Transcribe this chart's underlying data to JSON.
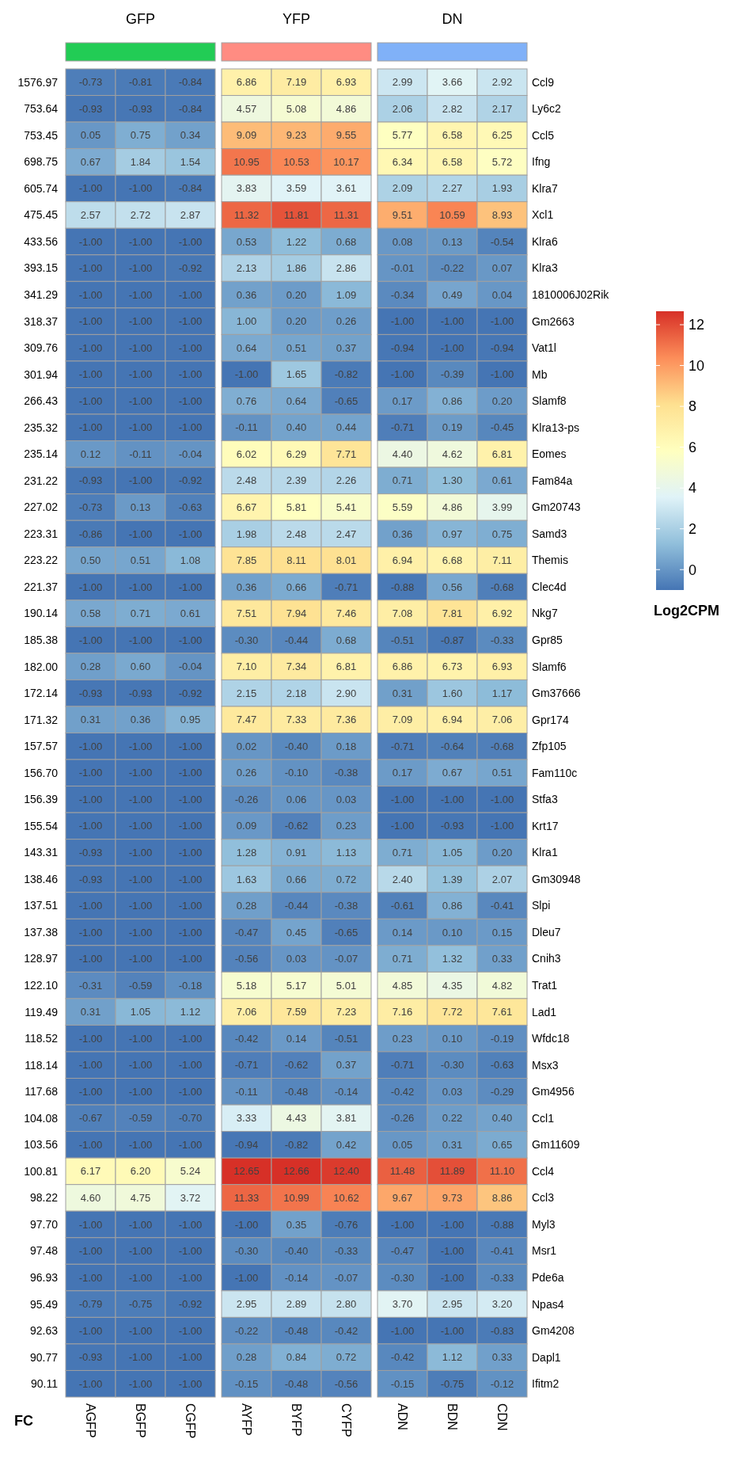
{
  "chart_data": [
    {
      "type": "heatmap",
      "title": "GFP",
      "ylabel": "FC",
      "categories": [
        "AGFP",
        "BGFP",
        "CGFP"
      ],
      "y_categories": [
        "1576.97",
        "753.64",
        "753.45",
        "698.75",
        "605.74",
        "475.45",
        "433.56",
        "393.15",
        "341.29",
        "318.37",
        "309.76",
        "301.94",
        "266.43",
        "235.32",
        "235.14",
        "231.22",
        "227.02",
        "223.31",
        "223.22",
        "221.37",
        "190.14",
        "185.38",
        "182.00",
        "172.14",
        "171.32",
        "157.57",
        "156.70",
        "156.39",
        "155.54",
        "143.31",
        "138.46",
        "137.51",
        "137.38",
        "128.97",
        "122.10",
        "119.49",
        "118.52",
        "118.14",
        "117.68",
        "104.08",
        "103.56",
        "100.81",
        "98.22",
        "97.70",
        "97.48",
        "96.93",
        "95.49",
        "92.63",
        "90.77",
        "90.11"
      ],
      "cells": [
        [
          -0.73,
          -0.81,
          -0.84
        ],
        [
          -0.93,
          -0.93,
          -0.84
        ],
        [
          0.05,
          0.75,
          0.34
        ],
        [
          0.67,
          1.84,
          1.54
        ],
        [
          -1,
          -1,
          -0.84
        ],
        [
          2.57,
          2.72,
          2.87
        ],
        [
          -1,
          -1,
          -1
        ],
        [
          -1,
          -1,
          -0.92
        ],
        [
          -1,
          -1,
          -1
        ],
        [
          -1,
          -1,
          -1
        ],
        [
          -1,
          -1,
          -1
        ],
        [
          -1,
          -1,
          -1
        ],
        [
          -1,
          -1,
          -1
        ],
        [
          -1,
          -1,
          -1
        ],
        [
          0.12,
          -0.11,
          -0.04
        ],
        [
          -0.93,
          -1,
          -0.92
        ],
        [
          -0.73,
          0.13,
          -0.63
        ],
        [
          -0.86,
          -1,
          -1
        ],
        [
          0.5,
          0.51,
          1.08
        ],
        [
          -1,
          -1,
          -1
        ],
        [
          0.58,
          0.71,
          0.61
        ],
        [
          -1,
          -1,
          -1
        ],
        [
          0.28,
          0.6,
          -0.04
        ],
        [
          -0.93,
          -0.93,
          -0.92
        ],
        [
          0.31,
          0.36,
          0.95
        ],
        [
          -1,
          -1,
          -1
        ],
        [
          -1,
          -1,
          -1
        ],
        [
          -1,
          -1,
          -1
        ],
        [
          -1,
          -1,
          -1
        ],
        [
          -0.93,
          -1,
          -1
        ],
        [
          -0.93,
          -1,
          -1
        ],
        [
          -1,
          -1,
          -1
        ],
        [
          -1,
          -1,
          -1
        ],
        [
          -1,
          -1,
          -1
        ],
        [
          -0.31,
          -0.59,
          -0.18
        ],
        [
          0.31,
          1.05,
          1.12
        ],
        [
          -1,
          -1,
          -1
        ],
        [
          -1,
          -1,
          -1
        ],
        [
          -1,
          -1,
          -1
        ],
        [
          -0.67,
          -0.59,
          -0.7
        ],
        [
          -1,
          -1,
          -1
        ],
        [
          6.17,
          6.2,
          5.24
        ],
        [
          4.6,
          4.75,
          3.72
        ],
        [
          -1,
          -1,
          -1
        ],
        [
          -1,
          -1,
          -1
        ],
        [
          -1,
          -1,
          -1
        ],
        [
          -0.79,
          -0.75,
          -0.92
        ],
        [
          -1,
          -1,
          -1
        ],
        [
          -0.93,
          -1,
          -1
        ],
        [
          -1,
          -1,
          -1
        ]
      ],
      "cell_labels": [
        [
          "-0.73",
          "-0.81",
          "-0.84"
        ],
        [
          "-0.93",
          "-0.93",
          "-0.84"
        ],
        [
          "0.05",
          "0.75",
          "0.34"
        ],
        [
          "0.67",
          "1.84",
          "1.54"
        ],
        [
          "-1.00",
          "-1.00",
          "-0.84"
        ],
        [
          "2.57",
          "2.72",
          "2.87"
        ],
        [
          "-1.00",
          "-1.00",
          "-1.00"
        ],
        [
          "-1.00",
          "-1.00",
          "-0.92"
        ],
        [
          "-1.00",
          "-1.00",
          "-1.00"
        ],
        [
          "-1.00",
          "-1.00",
          "-1.00"
        ],
        [
          "-1.00",
          "-1.00",
          "-1.00"
        ],
        [
          "-1.00",
          "-1.00",
          "-1.00"
        ],
        [
          "-1.00",
          "-1.00",
          "-1.00"
        ],
        [
          "-1.00",
          "-1.00",
          "-1.00"
        ],
        [
          "0.12",
          "-0.11",
          "-0.04"
        ],
        [
          "-0.93",
          "-1.00",
          "-0.92"
        ],
        [
          "-0.73",
          "0.13",
          "-0.63"
        ],
        [
          "-0.86",
          "-1.00",
          "-1.00"
        ],
        [
          "0.50",
          "0.51",
          "1.08"
        ],
        [
          "-1.00",
          "-1.00",
          "-1.00"
        ],
        [
          "0.58",
          "0.71",
          "0.61"
        ],
        [
          "-1.00",
          "-1.00",
          "-1.00"
        ],
        [
          "0.28",
          "0.60",
          "-0.04"
        ],
        [
          "-0.93",
          "-0.93",
          "-0.92"
        ],
        [
          "0.31",
          "0.36",
          "0.95"
        ],
        [
          "-1.00",
          "-1.00",
          "-1.00"
        ],
        [
          "-1.00",
          "-1.00",
          "-1.00"
        ],
        [
          "-1.00",
          "-1.00",
          "-1.00"
        ],
        [
          "-1.00",
          "-1.00",
          "-1.00"
        ],
        [
          "-0.93",
          "-1.00",
          "-1.00"
        ],
        [
          "-0.93",
          "-1.00",
          "-1.00"
        ],
        [
          "-1.00",
          "-1.00",
          "-1.00"
        ],
        [
          "-1.00",
          "-1.00",
          "-1.00"
        ],
        [
          "-1.00",
          "-1.00",
          "-1.00"
        ],
        [
          "-0.31",
          "-0.59",
          "-0.18"
        ],
        [
          "0.31",
          "1.05",
          "1.12"
        ],
        [
          "-1.00",
          "-1.00",
          "-1.00"
        ],
        [
          "-1.00",
          "-1.00",
          "-1.00"
        ],
        [
          "-1.00",
          "-1.00",
          "-1.00"
        ],
        [
          "-0.67",
          "-0.59",
          "-0.70"
        ],
        [
          "-1.00",
          "-1.00",
          "-1.00"
        ],
        [
          "6.17",
          "6.20",
          "5.24"
        ],
        [
          "4.60",
          "4.75",
          "3.72"
        ],
        [
          "-1.00",
          "-1.00",
          "-1.00"
        ],
        [
          "-1.00",
          "-1.00",
          "-1.00"
        ],
        [
          "-1.00",
          "-1.00",
          "-1.00"
        ],
        [
          "-0.79",
          "-0.75",
          "-0.92"
        ],
        [
          "-1.00",
          "-1.00",
          "-1.00"
        ],
        [
          "-0.93",
          "-1.00",
          "-1.00"
        ],
        [
          "-1.00",
          "-1.00",
          "-1.00"
        ]
      ]
    },
    {
      "type": "heatmap",
      "title": "YFP",
      "categories": [
        "AYFP",
        "BYFP",
        "CYFP"
      ],
      "y_categories": [
        null,
        null,
        null,
        null,
        null,
        null,
        null,
        null,
        null,
        null,
        null,
        null,
        null,
        null,
        null,
        null,
        null,
        null,
        null,
        null,
        null,
        null,
        null,
        null,
        null,
        null,
        null,
        null,
        null,
        null,
        null,
        null,
        null,
        null,
        null,
        null,
        null,
        null,
        null,
        null,
        null,
        null,
        null,
        null,
        null,
        null,
        null,
        null,
        null,
        null
      ],
      "cells": [
        [
          6.86,
          7.19,
          6.93
        ],
        [
          4.57,
          5.08,
          4.86
        ],
        [
          9.09,
          9.23,
          9.55
        ],
        [
          10.95,
          10.53,
          10.17
        ],
        [
          3.83,
          3.59,
          3.61
        ],
        [
          11.32,
          11.81,
          11.31
        ],
        [
          0.53,
          1.22,
          0.68
        ],
        [
          2.13,
          1.86,
          2.86
        ],
        [
          0.36,
          0.2,
          1.09
        ],
        [
          1,
          0.2,
          0.26
        ],
        [
          0.64,
          0.51,
          0.37
        ],
        [
          -1,
          1.65,
          -0.82
        ],
        [
          0.76,
          0.64,
          -0.65
        ],
        [
          -0.11,
          0.4,
          0.44
        ],
        [
          6.02,
          6.29,
          7.71
        ],
        [
          2.48,
          2.39,
          2.26
        ],
        [
          6.67,
          5.81,
          5.41
        ],
        [
          1.98,
          2.48,
          2.47
        ],
        [
          7.85,
          8.11,
          8.01
        ],
        [
          0.36,
          0.66,
          -0.71
        ],
        [
          7.51,
          7.94,
          7.46
        ],
        [
          -0.3,
          -0.44,
          0.68
        ],
        [
          7.1,
          7.34,
          6.81
        ],
        [
          2.15,
          2.18,
          2.9
        ],
        [
          7.47,
          7.33,
          7.36
        ],
        [
          0.02,
          -0.4,
          0.18
        ],
        [
          0.26,
          -0.1,
          -0.38
        ],
        [
          -0.26,
          0.06,
          0.03
        ],
        [
          0.09,
          -0.62,
          0.23
        ],
        [
          1.28,
          0.91,
          1.13
        ],
        [
          1.63,
          0.66,
          0.72
        ],
        [
          0.28,
          -0.44,
          -0.38
        ],
        [
          -0.47,
          0.45,
          -0.65
        ],
        [
          -0.56,
          0.03,
          -0.07
        ],
        [
          5.18,
          5.17,
          5.01
        ],
        [
          7.06,
          7.59,
          7.23
        ],
        [
          -0.42,
          0.14,
          -0.51
        ],
        [
          -0.71,
          -0.62,
          0.37
        ],
        [
          -0.11,
          -0.48,
          -0.14
        ],
        [
          3.33,
          4.43,
          3.81
        ],
        [
          -0.94,
          -0.82,
          0.42
        ],
        [
          12.65,
          12.66,
          12.4
        ],
        [
          11.33,
          10.99,
          10.62
        ],
        [
          -1,
          0.35,
          -0.76
        ],
        [
          -0.3,
          -0.4,
          -0.33
        ],
        [
          -1,
          -0.14,
          -0.07
        ],
        [
          2.95,
          2.89,
          2.8
        ],
        [
          -0.22,
          -0.48,
          -0.42
        ],
        [
          0.28,
          0.84,
          0.72
        ],
        [
          -0.15,
          -0.48,
          -0.56
        ]
      ],
      "cell_labels": [
        [
          "6.86",
          "7.19",
          "6.93"
        ],
        [
          "4.57",
          "5.08",
          "4.86"
        ],
        [
          "9.09",
          "9.23",
          "9.55"
        ],
        [
          "10.95",
          "10.53",
          "10.17"
        ],
        [
          "3.83",
          "3.59",
          "3.61"
        ],
        [
          "11.32",
          "11.81",
          "11.31"
        ],
        [
          "0.53",
          "1.22",
          "0.68"
        ],
        [
          "2.13",
          "1.86",
          "2.86"
        ],
        [
          "0.36",
          "0.20",
          "1.09"
        ],
        [
          "1.00",
          "0.20",
          "0.26"
        ],
        [
          "0.64",
          "0.51",
          "0.37"
        ],
        [
          "-1.00",
          "1.65",
          "-0.82"
        ],
        [
          "0.76",
          "0.64",
          "-0.65"
        ],
        [
          "-0.11",
          "0.40",
          "0.44"
        ],
        [
          "6.02",
          "6.29",
          "7.71"
        ],
        [
          "2.48",
          "2.39",
          "2.26"
        ],
        [
          "6.67",
          "5.81",
          "5.41"
        ],
        [
          "1.98",
          "2.48",
          "2.47"
        ],
        [
          "7.85",
          "8.11",
          "8.01"
        ],
        [
          "0.36",
          "0.66",
          "-0.71"
        ],
        [
          "7.51",
          "7.94",
          "7.46"
        ],
        [
          "-0.30",
          "-0.44",
          "0.68"
        ],
        [
          "7.10",
          "7.34",
          "6.81"
        ],
        [
          "2.15",
          "2.18",
          "2.90"
        ],
        [
          "7.47",
          "7.33",
          "7.36"
        ],
        [
          "0.02",
          "-0.40",
          "0.18"
        ],
        [
          "0.26",
          "-0.10",
          "-0.38"
        ],
        [
          "-0.26",
          "0.06",
          "0.03"
        ],
        [
          "0.09",
          "-0.62",
          "0.23"
        ],
        [
          "1.28",
          "0.91",
          "1.13"
        ],
        [
          "1.63",
          "0.66",
          "0.72"
        ],
        [
          "0.28",
          "-0.44",
          "-0.38"
        ],
        [
          "-0.47",
          "0.45",
          "-0.65"
        ],
        [
          "-0.56",
          "0.03",
          "-0.07"
        ],
        [
          "5.18",
          "5.17",
          "5.01"
        ],
        [
          "7.06",
          "7.59",
          "7.23"
        ],
        [
          "-0.42",
          "0.14",
          "-0.51"
        ],
        [
          "-0.71",
          "-0.62",
          "0.37"
        ],
        [
          "-0.11",
          "-0.48",
          "-0.14"
        ],
        [
          "3.33",
          "4.43",
          "3.81"
        ],
        [
          "-0.94",
          "-0.82",
          "0.42"
        ],
        [
          "12.65",
          "12.66",
          "12.40"
        ],
        [
          "11.33",
          "10.99",
          "10.62"
        ],
        [
          "-1.00",
          "0.35",
          "-0.76"
        ],
        [
          "-0.30",
          "-0.40",
          "-0.33"
        ],
        [
          "-1.00",
          "-0.14",
          "-0.07"
        ],
        [
          "2.95",
          "2.89",
          "2.80"
        ],
        [
          "-0.22",
          "-0.48",
          "-0.42"
        ],
        [
          "0.28",
          "0.84",
          "0.72"
        ],
        [
          "-0.15",
          "-0.48",
          "-0.56"
        ]
      ]
    },
    {
      "type": "heatmap",
      "title": "DN",
      "categories": [
        "ADN",
        "BDN",
        "CDN"
      ],
      "y_categories": [
        "Ccl9",
        "Ly6c2",
        "Ccl5",
        "Ifng",
        "Klra7",
        "Xcl1",
        "Klra6",
        "Klra3",
        "1810006J02Rik",
        "Gm2663",
        "Vat1l",
        "Mb",
        "Slamf8",
        "Klra13-ps",
        "Eomes",
        "Fam84a",
        "Gm20743",
        "Samd3",
        "Themis",
        "Clec4d",
        "Nkg7",
        "Gpr85",
        "Slamf6",
        "Gm37666",
        "Gpr174",
        "Zfp105",
        "Fam110c",
        "Stfa3",
        "Krt17",
        "Klra1",
        "Gm30948",
        "Slpi",
        "Dleu7",
        "Cnih3",
        "Trat1",
        "Lad1",
        "Wfdc18",
        "Msx3",
        "Gm4956",
        "Ccl1",
        "Gm11609",
        "Ccl4",
        "Ccl3",
        "Myl3",
        "Msr1",
        "Pde6a",
        "Npas4",
        "Gm4208",
        "Dapl1",
        "Ifitm2"
      ],
      "clabel": "Log2CPM",
      "clim": [
        -1,
        12.66
      ],
      "cticks": [
        0,
        2,
        4,
        6,
        8,
        10,
        12
      ],
      "cells": [
        [
          2.99,
          3.66,
          2.92
        ],
        [
          2.06,
          2.82,
          2.17
        ],
        [
          5.77,
          6.58,
          6.25
        ],
        [
          6.34,
          6.58,
          5.72
        ],
        [
          2.09,
          2.27,
          1.93
        ],
        [
          9.51,
          10.59,
          8.93
        ],
        [
          0.08,
          0.13,
          -0.54
        ],
        [
          -0.01,
          -0.22,
          0.07
        ],
        [
          -0.34,
          0.49,
          0.04
        ],
        [
          -1,
          -1,
          -1
        ],
        [
          -0.94,
          -1,
          -0.94
        ],
        [
          -1,
          -0.39,
          -1
        ],
        [
          0.17,
          0.86,
          0.2
        ],
        [
          -0.71,
          0.19,
          -0.45
        ],
        [
          4.4,
          4.62,
          6.81
        ],
        [
          0.71,
          1.3,
          0.61
        ],
        [
          5.59,
          4.86,
          3.99
        ],
        [
          0.36,
          0.97,
          0.75
        ],
        [
          6.94,
          6.68,
          7.11
        ],
        [
          -0.88,
          0.56,
          -0.68
        ],
        [
          7.08,
          7.81,
          6.92
        ],
        [
          -0.51,
          -0.87,
          -0.33
        ],
        [
          6.86,
          6.73,
          6.93
        ],
        [
          0.31,
          1.6,
          1.17
        ],
        [
          7.09,
          6.94,
          7.06
        ],
        [
          -0.71,
          -0.64,
          -0.68
        ],
        [
          0.17,
          0.67,
          0.51
        ],
        [
          -1,
          -1,
          -1
        ],
        [
          -1,
          -0.93,
          -1
        ],
        [
          0.71,
          1.05,
          0.2
        ],
        [
          2.4,
          1.39,
          2.07
        ],
        [
          -0.61,
          0.86,
          -0.41
        ],
        [
          0.14,
          0.1,
          0.15
        ],
        [
          0.71,
          1.32,
          0.33
        ],
        [
          4.85,
          4.35,
          4.82
        ],
        [
          7.16,
          7.72,
          7.61
        ],
        [
          0.23,
          0.1,
          -0.19
        ],
        [
          -0.71,
          -0.3,
          -0.63
        ],
        [
          -0.42,
          0.03,
          -0.29
        ],
        [
          -0.26,
          0.22,
          0.4
        ],
        [
          0.05,
          0.31,
          0.65
        ],
        [
          11.48,
          11.89,
          11.1
        ],
        [
          9.67,
          9.73,
          8.86
        ],
        [
          -1,
          -1,
          -0.88
        ],
        [
          -0.47,
          -1,
          -0.41
        ],
        [
          -0.3,
          -1,
          -0.33
        ],
        [
          3.7,
          2.95,
          3.2
        ],
        [
          -1,
          -1,
          -0.83
        ],
        [
          -0.42,
          1.12,
          0.33
        ],
        [
          -0.15,
          -0.75,
          -0.12
        ]
      ],
      "cell_labels": [
        [
          "2.99",
          "3.66",
          "2.92"
        ],
        [
          "2.06",
          "2.82",
          "2.17"
        ],
        [
          "5.77",
          "6.58",
          "6.25"
        ],
        [
          "6.34",
          "6.58",
          "5.72"
        ],
        [
          "2.09",
          "2.27",
          "1.93"
        ],
        [
          "9.51",
          "10.59",
          "8.93"
        ],
        [
          "0.08",
          "0.13",
          "-0.54"
        ],
        [
          "-0.01",
          "-0.22",
          "0.07"
        ],
        [
          "-0.34",
          "0.49",
          "0.04"
        ],
        [
          "-1.00",
          "-1.00",
          "-1.00"
        ],
        [
          "-0.94",
          "-1.00",
          "-0.94"
        ],
        [
          "-1.00",
          "-0.39",
          "-1.00"
        ],
        [
          "0.17",
          "0.86",
          "0.20"
        ],
        [
          "-0.71",
          "0.19",
          "-0.45"
        ],
        [
          "4.40",
          "4.62",
          "6.81"
        ],
        [
          "0.71",
          "1.30",
          "0.61"
        ],
        [
          "5.59",
          "4.86",
          "3.99"
        ],
        [
          "0.36",
          "0.97",
          "0.75"
        ],
        [
          "6.94",
          "6.68",
          "7.11"
        ],
        [
          "-0.88",
          "0.56",
          "-0.68"
        ],
        [
          "7.08",
          "7.81",
          "6.92"
        ],
        [
          "-0.51",
          "-0.87",
          "-0.33"
        ],
        [
          "6.86",
          "6.73",
          "6.93"
        ],
        [
          "0.31",
          "1.60",
          "1.17"
        ],
        [
          "7.09",
          "6.94",
          "7.06"
        ],
        [
          "-0.71",
          "-0.64",
          "-0.68"
        ],
        [
          "0.17",
          "0.67",
          "0.51"
        ],
        [
          "-1.00",
          "-1.00",
          "-1.00"
        ],
        [
          "-1.00",
          "-0.93",
          "-1.00"
        ],
        [
          "0.71",
          "1.05",
          "0.20"
        ],
        [
          "2.40",
          "1.39",
          "2.07"
        ],
        [
          "-0.61",
          "0.86",
          "-0.41"
        ],
        [
          "0.14",
          "0.10",
          "0.15"
        ],
        [
          "0.71",
          "1.32",
          "0.33"
        ],
        [
          "4.85",
          "4.35",
          "4.82"
        ],
        [
          "7.16",
          "7.72",
          "7.61"
        ],
        [
          "0.23",
          "0.10",
          "-0.19"
        ],
        [
          "-0.71",
          "-0.30",
          "-0.63"
        ],
        [
          "-0.42",
          "0.03",
          "-0.29"
        ],
        [
          "-0.26",
          "0.22",
          "0.40"
        ],
        [
          "0.05",
          "0.31",
          "0.65"
        ],
        [
          "11.48",
          "11.89",
          "11.10"
        ],
        [
          "9.67",
          "9.73",
          "8.86"
        ],
        [
          "-1.00",
          "-1.00",
          "-0.88"
        ],
        [
          "-0.47",
          "-1.00",
          "-0.41"
        ],
        [
          "-0.30",
          "-1.00",
          "-0.33"
        ],
        [
          "3.70",
          "2.95",
          "3.20"
        ],
        [
          "-1.00",
          "-1.00",
          "-0.83"
        ],
        [
          "-0.42",
          "1.12",
          "0.33"
        ],
        [
          "-0.15",
          "-0.75",
          "-0.12"
        ]
      ]
    }
  ]
}
